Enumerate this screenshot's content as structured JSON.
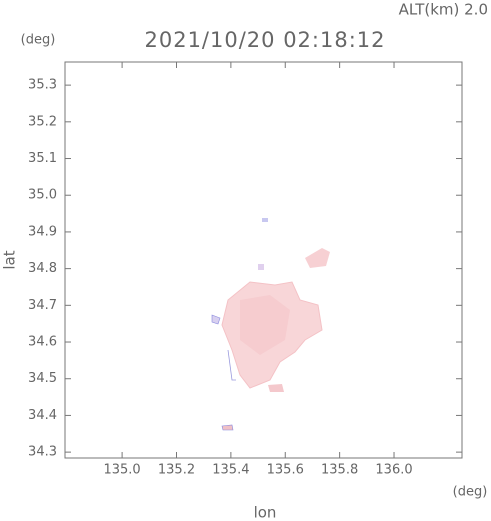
{
  "map": {
    "title": "2021/10/20 02:18:12",
    "altitude_label": "ALT(km) 2.0",
    "x_axis": {
      "label": "lon",
      "unit": "(deg)",
      "xlim": [
        134.79,
        136.25
      ],
      "xticks": [
        {
          "value": 135.0,
          "label": "135.0"
        },
        135.2,
        135.4,
        135.6,
        135.8,
        {
          "value": 136.0,
          "label": "136.0"
        }
      ]
    },
    "y_axis": {
      "label": "lat",
      "unit": "(deg)",
      "ylim": [
        34.284,
        35.363
      ],
      "yticks": [
        34.3,
        34.4,
        34.5,
        34.6,
        34.7,
        34.8,
        34.9,
        {
          "value": 35.0,
          "label": "35.0"
        },
        35.1,
        35.2,
        35.3
      ]
    }
  }
}
